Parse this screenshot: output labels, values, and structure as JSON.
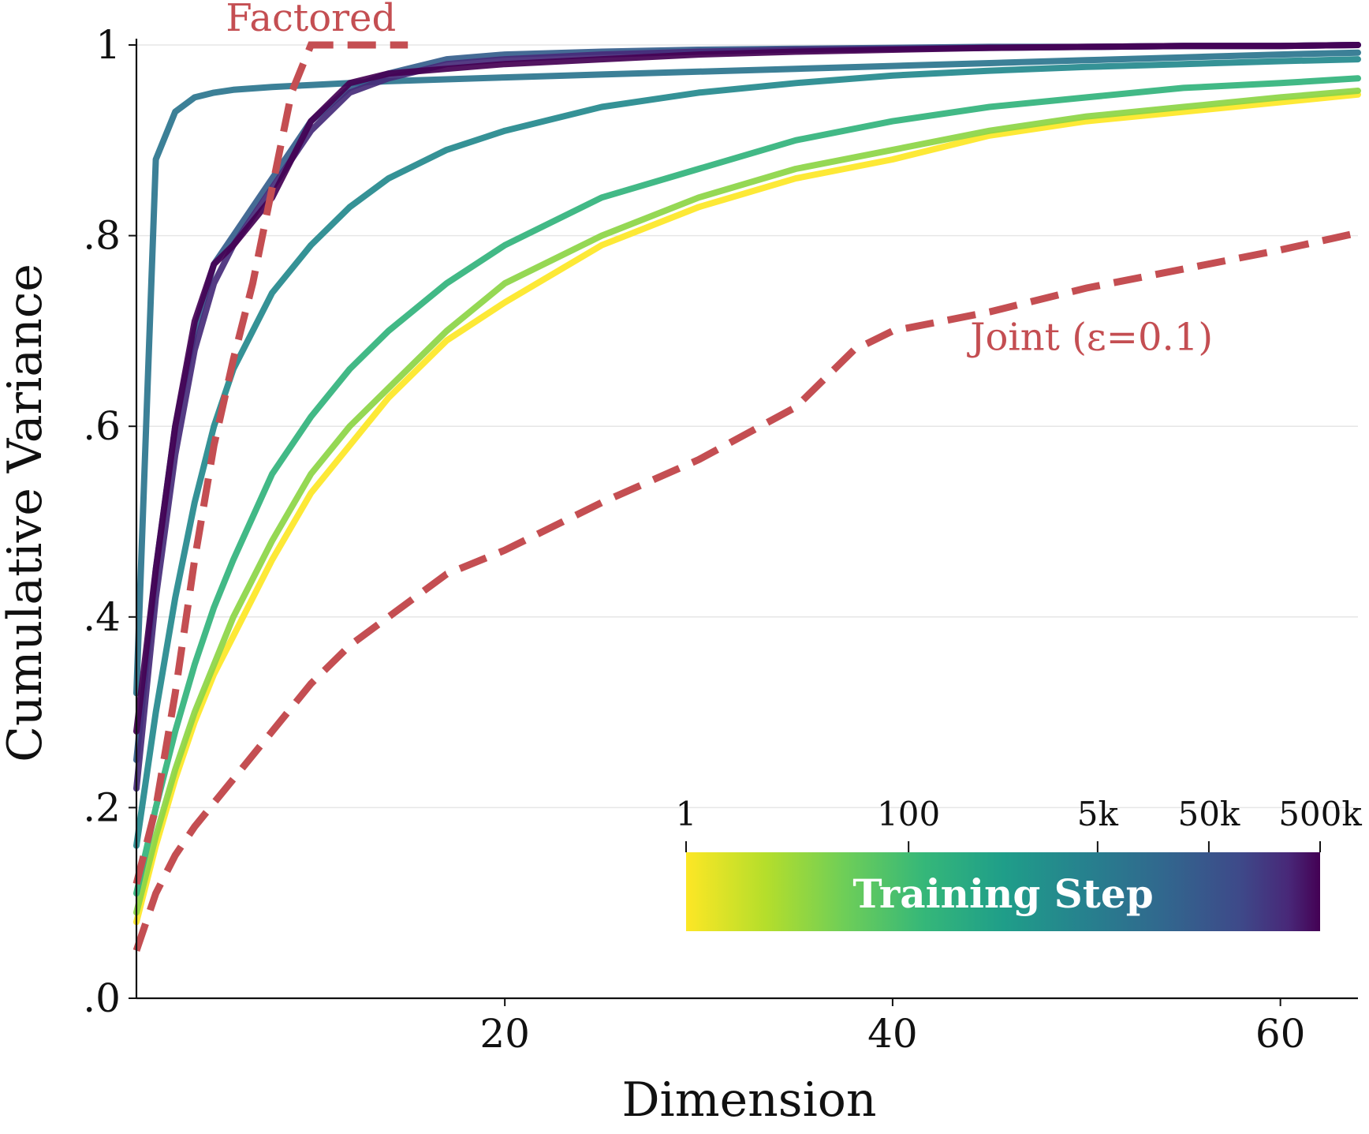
{
  "chart_data": {
    "type": "line",
    "title": "",
    "xlabel": "Dimension",
    "ylabel": "Cumulative Variance",
    "xlim": [
      1,
      64
    ],
    "ylim": [
      0,
      1
    ],
    "x_ticks": [
      {
        "value": 20,
        "label": "20"
      },
      {
        "value": 40,
        "label": "40"
      },
      {
        "value": 60,
        "label": "60"
      }
    ],
    "y_ticks": [
      {
        "value": 0.0,
        "label": ".0"
      },
      {
        "value": 0.2,
        "label": ".2"
      },
      {
        "value": 0.4,
        "label": ".4"
      },
      {
        "value": 0.6,
        "label": ".6"
      },
      {
        "value": 0.8,
        "label": ".8"
      },
      {
        "value": 1.0,
        "label": "1"
      }
    ],
    "grid": "horizontal",
    "colorbar": {
      "title": "Training Step",
      "colormap": "viridis (reversed)",
      "scale": "log",
      "range": [
        1,
        500000
      ],
      "ticks": [
        {
          "value": 1,
          "label": "1"
        },
        {
          "value": 100,
          "label": "100"
        },
        {
          "value": 5000,
          "label": "5k"
        },
        {
          "value": 50000,
          "label": "50k"
        },
        {
          "value": 500000,
          "label": "500k"
        }
      ],
      "placement": "bottom-right"
    },
    "series": [
      {
        "name": "step-1",
        "step": 1,
        "x": [
          1,
          2,
          3,
          4,
          5,
          6,
          8,
          10,
          12,
          14,
          17,
          20,
          25,
          30,
          35,
          40,
          45,
          50,
          55,
          60,
          64
        ],
        "y": [
          0.08,
          0.16,
          0.23,
          0.29,
          0.34,
          0.38,
          0.46,
          0.53,
          0.58,
          0.63,
          0.69,
          0.73,
          0.79,
          0.83,
          0.86,
          0.88,
          0.905,
          0.92,
          0.93,
          0.94,
          0.948
        ]
      },
      {
        "name": "step-10",
        "step": 10,
        "x": [
          1,
          2,
          3,
          4,
          5,
          6,
          8,
          10,
          12,
          14,
          17,
          20,
          25,
          30,
          35,
          40,
          45,
          50,
          55,
          60,
          64
        ],
        "y": [
          0.09,
          0.17,
          0.24,
          0.3,
          0.35,
          0.4,
          0.48,
          0.55,
          0.6,
          0.64,
          0.7,
          0.75,
          0.8,
          0.84,
          0.87,
          0.89,
          0.91,
          0.925,
          0.935,
          0.945,
          0.952
        ]
      },
      {
        "name": "step-100",
        "step": 100,
        "x": [
          1,
          2,
          3,
          4,
          5,
          6,
          8,
          10,
          12,
          14,
          17,
          20,
          25,
          30,
          35,
          40,
          45,
          50,
          55,
          60,
          64
        ],
        "y": [
          0.11,
          0.2,
          0.28,
          0.35,
          0.41,
          0.46,
          0.55,
          0.61,
          0.66,
          0.7,
          0.75,
          0.79,
          0.84,
          0.87,
          0.9,
          0.92,
          0.935,
          0.945,
          0.955,
          0.96,
          0.965
        ]
      },
      {
        "name": "step-1000",
        "step": 1000,
        "x": [
          1,
          2,
          3,
          4,
          5,
          6,
          8,
          10,
          12,
          14,
          17,
          20,
          25,
          30,
          35,
          40,
          45,
          50,
          55,
          60,
          64
        ],
        "y": [
          0.16,
          0.3,
          0.42,
          0.52,
          0.6,
          0.66,
          0.74,
          0.79,
          0.83,
          0.86,
          0.89,
          0.91,
          0.935,
          0.95,
          0.96,
          0.968,
          0.973,
          0.977,
          0.98,
          0.983,
          0.985
        ]
      },
      {
        "name": "step-3000",
        "step": 3000,
        "x": [
          1,
          2,
          3,
          4,
          5,
          6,
          8,
          10,
          12,
          14,
          17,
          20,
          25,
          30,
          35,
          40,
          45,
          50,
          55,
          60,
          64
        ],
        "y": [
          0.32,
          0.88,
          0.93,
          0.945,
          0.95,
          0.953,
          0.956,
          0.958,
          0.96,
          0.962,
          0.964,
          0.966,
          0.969,
          0.972,
          0.975,
          0.978,
          0.981,
          0.984,
          0.987,
          0.99,
          0.992
        ]
      },
      {
        "name": "step-10000",
        "step": 10000,
        "x": [
          1,
          2,
          3,
          4,
          5,
          6,
          8,
          10,
          12,
          14,
          17,
          20,
          25,
          30,
          35,
          40,
          45,
          50,
          55,
          60,
          64
        ],
        "y": [
          0.25,
          0.45,
          0.6,
          0.7,
          0.77,
          0.8,
          0.86,
          0.92,
          0.955,
          0.97,
          0.985,
          0.99,
          0.993,
          0.995,
          0.996,
          0.997,
          0.998,
          0.998,
          0.999,
          0.999,
          1.0
        ]
      },
      {
        "name": "step-100000",
        "step": 100000,
        "x": [
          1,
          2,
          3,
          4,
          5,
          6,
          8,
          10,
          12,
          14,
          17,
          20,
          25,
          30,
          35,
          40,
          45,
          50,
          55,
          60,
          64
        ],
        "y": [
          0.22,
          0.42,
          0.57,
          0.68,
          0.75,
          0.79,
          0.85,
          0.91,
          0.95,
          0.965,
          0.98,
          0.985,
          0.99,
          0.993,
          0.995,
          0.996,
          0.997,
          0.998,
          0.999,
          0.999,
          1.0
        ]
      },
      {
        "name": "step-500000",
        "step": 500000,
        "x": [
          1,
          2,
          3,
          4,
          5,
          6,
          8,
          10,
          12,
          14,
          17,
          20,
          25,
          30,
          35,
          40,
          45,
          50,
          55,
          60,
          64
        ],
        "y": [
          0.28,
          0.45,
          0.6,
          0.71,
          0.77,
          0.79,
          0.84,
          0.92,
          0.96,
          0.97,
          0.975,
          0.98,
          0.985,
          0.99,
          0.993,
          0.995,
          0.997,
          0.998,
          0.999,
          0.999,
          1.0
        ]
      }
    ],
    "reference_lines": [
      {
        "name": "Factored",
        "style": "dashed",
        "color": "#c44e52",
        "x": [
          1,
          2,
          3,
          4,
          5,
          6,
          7,
          8,
          9,
          10,
          11,
          15
        ],
        "y": [
          0.12,
          0.2,
          0.32,
          0.46,
          0.58,
          0.67,
          0.75,
          0.85,
          0.95,
          1.0,
          1.0,
          1.0
        ],
        "label_at": {
          "x": 10,
          "y": 1.015
        }
      },
      {
        "name": "Joint (ε=0.1)",
        "style": "dashed",
        "color": "#c44e52",
        "x": [
          1,
          2,
          3,
          4,
          5,
          6,
          8,
          10,
          12,
          14,
          17,
          20,
          25,
          30,
          35,
          38,
          40,
          45,
          50,
          55,
          60,
          64
        ],
        "y": [
          0.05,
          0.11,
          0.15,
          0.18,
          0.205,
          0.23,
          0.28,
          0.33,
          0.37,
          0.4,
          0.445,
          0.47,
          0.52,
          0.565,
          0.62,
          0.68,
          0.7,
          0.72,
          0.745,
          0.765,
          0.785,
          0.803
        ],
        "label_at": {
          "x": 44,
          "y": 0.68
        }
      }
    ]
  }
}
